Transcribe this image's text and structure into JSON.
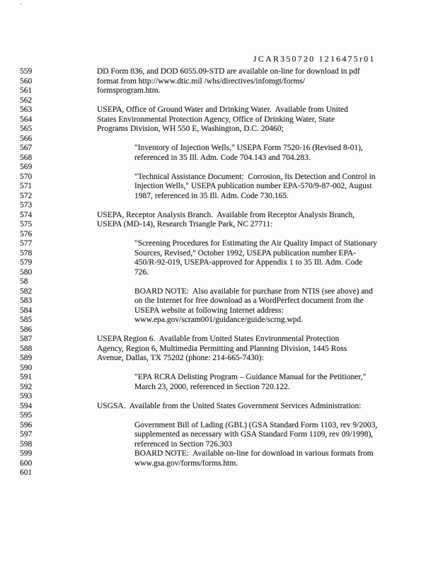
{
  "page": {
    "corner_mark": "`",
    "header": "JCAR350720 1216475r01",
    "lines": [
      {
        "num": "559",
        "indent": 1,
        "text": "DD Form 836, and DOD 6055.09-STD are available on-line for download in pdf"
      },
      {
        "num": "560",
        "indent": 1,
        "text": "format from http://www.dtic.mil /whs/directives/infomgt/forms/"
      },
      {
        "num": "561",
        "indent": 1,
        "text": "formsprogram.htm."
      },
      {
        "num": "562",
        "indent": 0,
        "text": ""
      },
      {
        "num": "563",
        "indent": 1,
        "text": "USEPA, Office of Ground Water and Drinking Water.  Available from United"
      },
      {
        "num": "564",
        "indent": 1,
        "text": "States Environmental Protection Agency, Office of Drinking Water, State"
      },
      {
        "num": "565",
        "indent": 1,
        "text": "Programs Division, WH 550 E, Washington, D.C. 20460;"
      },
      {
        "num": "566",
        "indent": 0,
        "text": ""
      },
      {
        "num": "567",
        "indent": 2,
        "text": "\"Inventory of Injection Wells,\" USEPA Form 7520-16 (Revised 8-01),"
      },
      {
        "num": "568",
        "indent": 2,
        "text": "referenced in 35 Ill. Adm. Code 704.143 and 704.283."
      },
      {
        "num": "569",
        "indent": 0,
        "text": ""
      },
      {
        "num": "570",
        "indent": 2,
        "text": "\"Technical Assistance Document:  Corrosion, Its Detection and Control in"
      },
      {
        "num": "571",
        "indent": 2,
        "text": "Injection Wells,\" USEPA publication number EPA-570/9-87-002, August"
      },
      {
        "num": "572",
        "indent": 2,
        "text": "1987, referenced in 35 Ill. Adm. Code 730.165."
      },
      {
        "num": "573",
        "indent": 0,
        "text": ""
      },
      {
        "num": "574",
        "indent": 1,
        "text": "USEPA, Receptor Analysis Branch.  Available from Receptor Analysis Branch,"
      },
      {
        "num": "575",
        "indent": 1,
        "text": "USEPA (MD-14), Research Triangle Park, NC 27711:"
      },
      {
        "num": "576",
        "indent": 0,
        "text": ""
      },
      {
        "num": "577",
        "indent": 2,
        "text": "\"Screening Procedures for Estimating the Air Quality Impact of Stationary"
      },
      {
        "num": "578",
        "indent": 2,
        "text": "Sources, Revised,\" October 1992, USEPA publication number EPA-"
      },
      {
        "num": "579",
        "indent": 2,
        "text": "450/R-92-019, USEPA-approved for Appendix 1 to 35 Ill. Adm. Code"
      },
      {
        "num": "580",
        "indent": 2,
        "text": "726."
      },
      {
        "num": "58",
        "indent": 0,
        "text": ""
      },
      {
        "num": "582",
        "indent": 2,
        "text": "BOARD NOTE:  Also available for purchase from NTIS (see above) and"
      },
      {
        "num": "583",
        "indent": 2,
        "text": "on the Internet for free download as a WordPerfect document from the"
      },
      {
        "num": "584",
        "indent": 2,
        "text": "USEPA website at following Internet address:"
      },
      {
        "num": "585",
        "indent": 2,
        "text": "www.epa.gov/scram001/guidance/guide/scrng.wpd."
      },
      {
        "num": "586",
        "indent": 0,
        "text": ""
      },
      {
        "num": "587",
        "indent": 1,
        "text": "USEPA Region 6.  Available from United States Environmental Protection"
      },
      {
        "num": "588",
        "indent": 1,
        "text": "Agency, Region 6, Multimedia Permitting and Planning Division, 1445 Ross"
      },
      {
        "num": "589",
        "indent": 1,
        "text": "Avenue, Dallas, TX 75202 (phone: 214-665-7430):"
      },
      {
        "num": "590",
        "indent": 0,
        "text": ""
      },
      {
        "num": "591",
        "indent": 2,
        "text": "\"EPA RCRA Delisting Program – Guidance Manual for the Petitioner,\""
      },
      {
        "num": "592",
        "indent": 2,
        "text": "March 23, 2000, referenced in Section 720.122."
      },
      {
        "num": "593",
        "indent": 0,
        "text": ""
      },
      {
        "num": "594",
        "indent": 1,
        "text": "USGSA.  Available from the United States Government Services Administration:"
      },
      {
        "num": "595",
        "indent": 0,
        "text": ""
      },
      {
        "num": "596",
        "indent": 2,
        "text": "Government Bill of Lading (GBL) (GSA Standard Form 1103, rev 9/2003,"
      },
      {
        "num": "597",
        "indent": 2,
        "text": "supplemented as necessary with GSA Standard Form 1109, rev 09/1998),"
      },
      {
        "num": "598",
        "indent": 2,
        "text": "referenced in Section 726.303"
      },
      {
        "num": "599",
        "indent": 2,
        "text": "BOARD NOTE:  Available on-line for download in various formats from"
      },
      {
        "num": "600",
        "indent": 2,
        "text": "www.gsa.gov/forms/forms.htm."
      },
      {
        "num": "601",
        "indent": 0,
        "text": ""
      }
    ]
  }
}
